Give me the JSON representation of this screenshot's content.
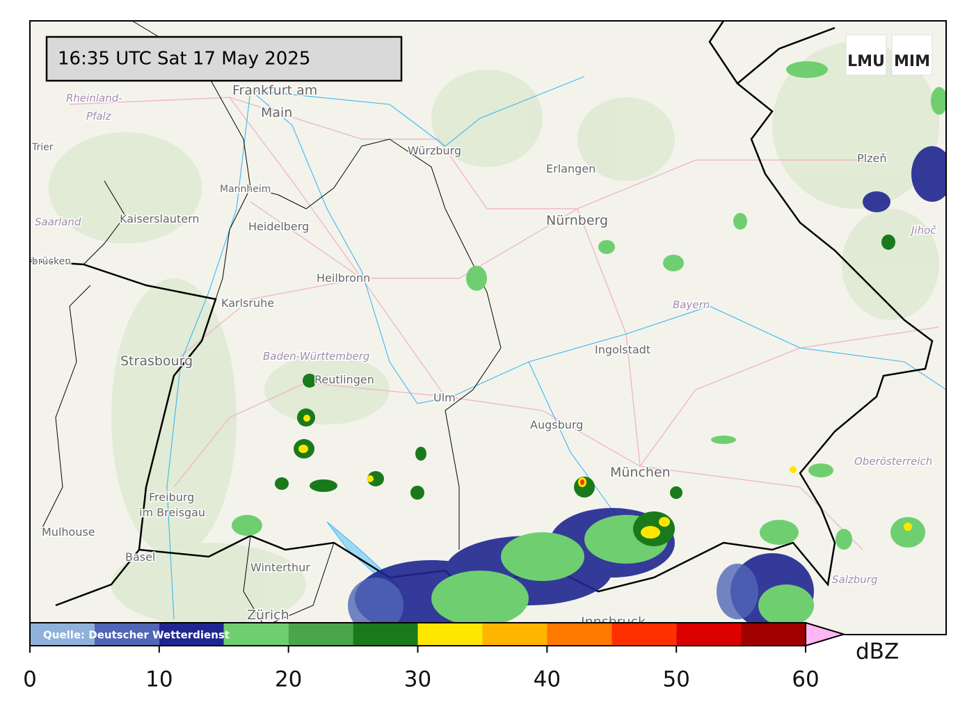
{
  "timestamp": "16:35 UTC  Sat 17 May 2025",
  "logos": [
    "LMU",
    "MIM"
  ],
  "places": {
    "frankfurt": [
      "Frankfurt am",
      "Main"
    ],
    "rheinland_pfalz": [
      "Rheinland-",
      "Pfalz"
    ],
    "trier": "Trier",
    "mannheim": "Mannheim",
    "kaiserslautern": "Kaiserslautern",
    "heidelberg": "Heidelberg",
    "saarland": "Saarland",
    "saarbruecken": "Saarbrücken",
    "karlsruhe": "Karlsruhe",
    "heilbronn": "Heilbronn",
    "wuerzburg": "Würzburg",
    "erlangen": "Erlangen",
    "nuernberg": "Nürnberg",
    "bayern": "Bayern",
    "ingolstadt": "Ingolstadt",
    "baden_wuerttemberg": "Baden-Württemberg",
    "reutlingen": "Reutlingen",
    "ulm": "Ulm",
    "augsburg": "Augsburg",
    "muenchen": "München",
    "strasbourg": "Strasbourg",
    "freiburg": [
      "Freiburg",
      "im Breisgau"
    ],
    "mulhouse": "Mulhouse",
    "basel": "Basel",
    "winterthur": "Winterthur",
    "zuerich": "Zürich",
    "innsbruck": "Innsbruck",
    "salzburg": "Salzburg",
    "oberoesterreich": "Oberösterreich",
    "plzen": "Plzeň",
    "jihoc": "Jihoč"
  },
  "legend": {
    "source": "Quelle: Deutscher Wetterdienst",
    "unit": "dBZ",
    "bounds": [
      0,
      5,
      10,
      15,
      20,
      25,
      30,
      35,
      40,
      45,
      50,
      55,
      60
    ],
    "colors": [
      "#8fb2da",
      "#5066b6",
      "#1f2690",
      "#6fcf70",
      "#49a64a",
      "#1a7a1b",
      "#ffe600",
      "#ffb400",
      "#ff7800",
      "#ff3000",
      "#dd0000",
      "#a00000"
    ],
    "extend_color": "#ffb6f5",
    "ticks": [
      0,
      10,
      20,
      30,
      40,
      50,
      60
    ]
  }
}
